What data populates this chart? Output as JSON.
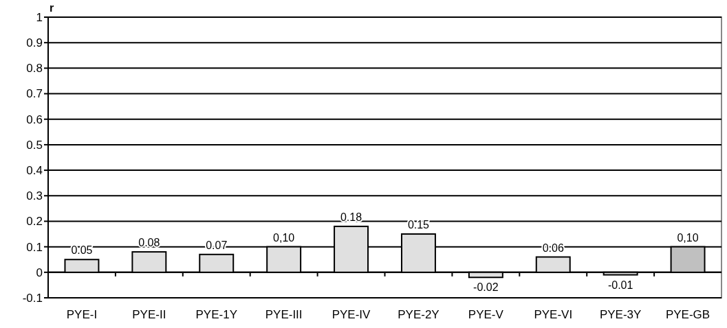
{
  "chart_data": {
    "type": "bar",
    "ylabel": "r",
    "categories": [
      "PYE-I",
      "PYE-II",
      "PYE-1Y",
      "PYE-III",
      "PYE-IV",
      "PYE-2Y",
      "PYE-V",
      "PYE-VI",
      "PYE-3Y",
      "PYE-GB"
    ],
    "values": [
      0.05,
      0.08,
      0.07,
      0.1,
      0.18,
      0.15,
      -0.02,
      0.06,
      -0.01,
      0.1
    ],
    "colors": [
      "#e0e0e0",
      "#e0e0e0",
      "#e0e0e0",
      "#e0e0e0",
      "#e0e0e0",
      "#e0e0e0",
      "#e0e0e0",
      "#e0e0e0",
      "#e0e0e0",
      "#c0c0c0"
    ],
    "value_labels": [
      "0.05",
      "0.08",
      "0.07",
      "0,10",
      "0.18",
      "0.15",
      "-0.02",
      "0.06",
      "-0.01",
      "0,10"
    ],
    "ylim": [
      -0.1,
      1
    ],
    "yticks": [
      -0.1,
      0,
      0.1,
      0.2,
      0.3,
      0.4,
      0.5,
      0.6,
      0.7,
      0.8,
      0.9,
      1
    ],
    "grid": "y"
  }
}
